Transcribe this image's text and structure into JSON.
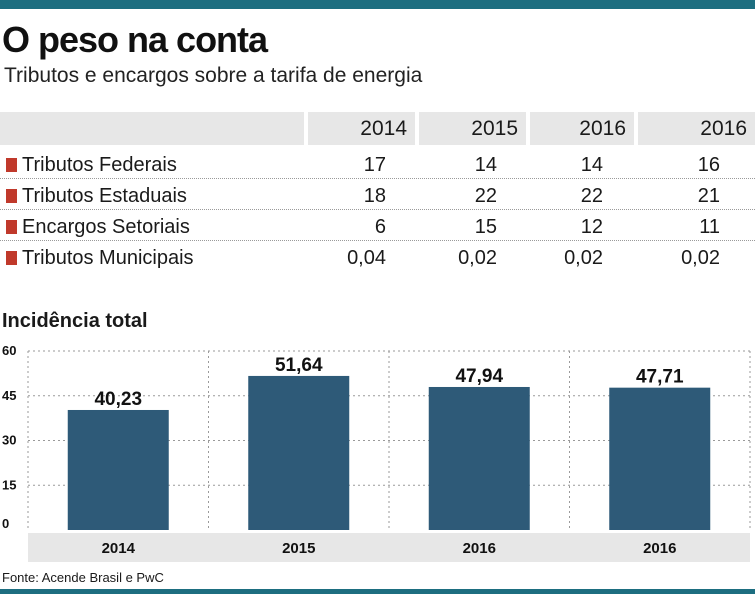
{
  "header": {
    "title": "O peso na conta",
    "subtitle": "Tributos e encargos sobre a tarifa de energia"
  },
  "table": {
    "columns": [
      "2014",
      "2015",
      "2016",
      "2016"
    ],
    "rows": [
      {
        "label": "Tributos Federais",
        "values": [
          "17",
          "14",
          "14",
          "16"
        ]
      },
      {
        "label": "Tributos Estaduais",
        "values": [
          "18",
          "22",
          "22",
          "21"
        ]
      },
      {
        "label": "Encargos Setoriais",
        "values": [
          "6",
          "15",
          "12",
          "11"
        ]
      },
      {
        "label": "Tributos Municipais",
        "values": [
          "0,04",
          "0,02",
          "0,02",
          "0,02"
        ]
      }
    ],
    "swatch_color": "#c0392b"
  },
  "chart_data": {
    "type": "bar",
    "title": "Incidência total",
    "categories": [
      "2014",
      "2015",
      "2016",
      "2016"
    ],
    "values": [
      40.23,
      51.64,
      47.94,
      47.71
    ],
    "value_labels": [
      "40,23",
      "51,64",
      "47,94",
      "47,71"
    ],
    "ylim": [
      0,
      60
    ],
    "yticks": [
      "0",
      "15",
      "30",
      "45",
      "60"
    ],
    "ytick_values": [
      0,
      15,
      30,
      45,
      60
    ],
    "grid": true,
    "bar_color": "#2e5a78"
  },
  "footer": {
    "source": "Fonte: Acende Brasil e PwC"
  },
  "colors": {
    "accent_bar": "#1d6e80",
    "header_bg": "#e7e7e7"
  }
}
